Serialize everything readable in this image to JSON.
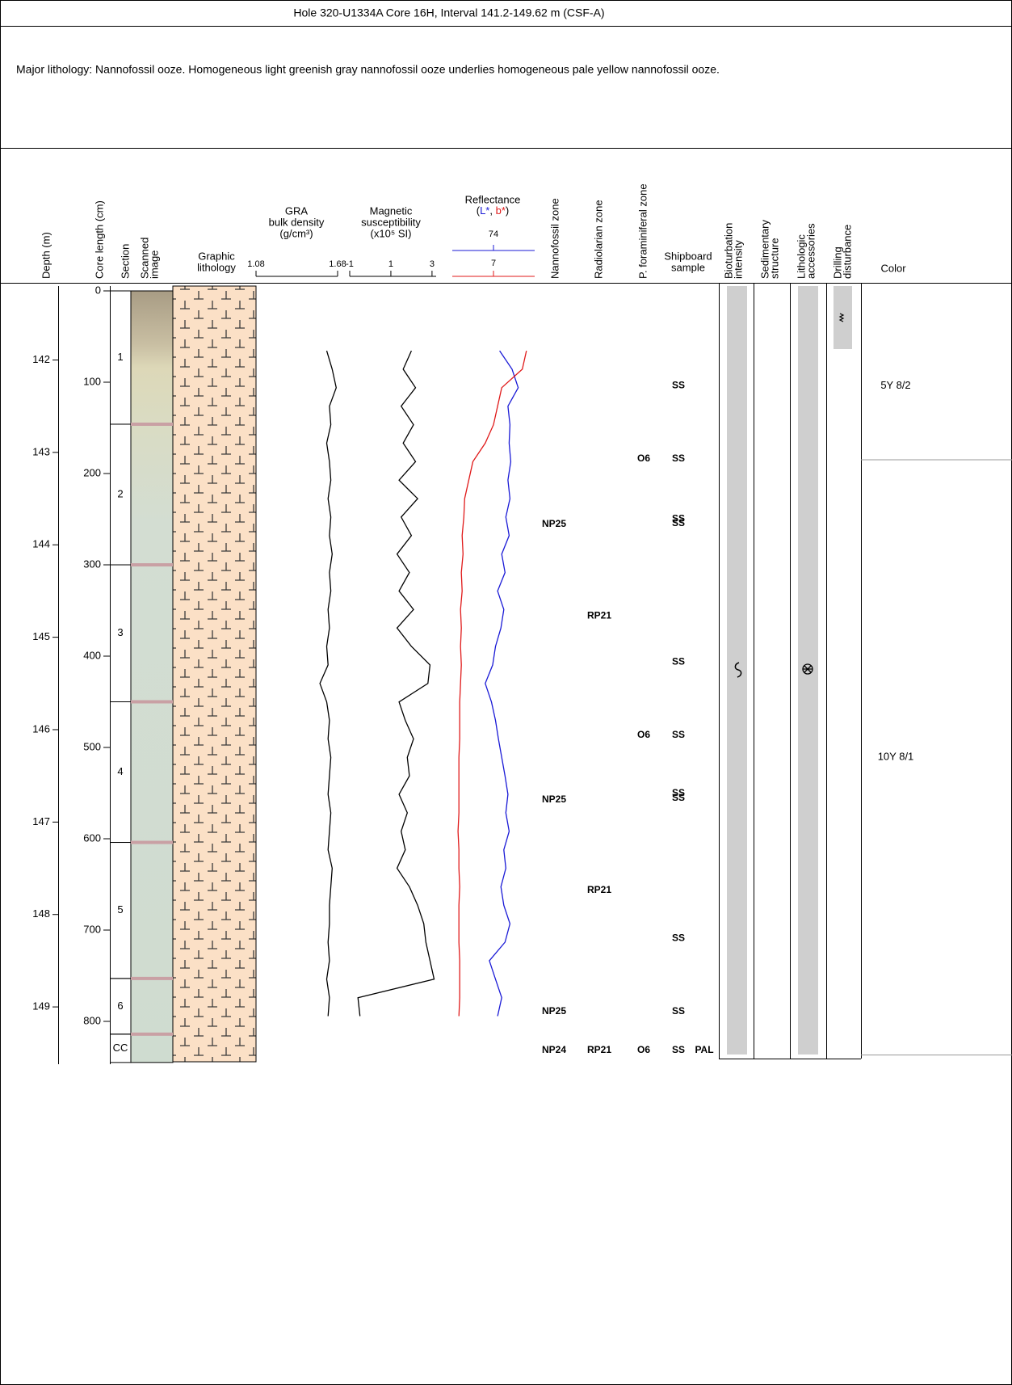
{
  "title": "Hole 320-U1334A Core 16H, Interval 141.2-149.62 m (CSF-A)",
  "lithology": "Major lithology: Nannofossil ooze. Homogeneous light greenish gray nannofossil ooze underlies homogeneous pale yellow nannofossil ooze.",
  "columns": {
    "depth": "Depth (m)",
    "core_length": "Core length (cm)",
    "section": "Section",
    "scanned": [
      "Scanned",
      "image"
    ],
    "graphic": [
      "Graphic",
      "lithology"
    ],
    "gra": [
      "GRA",
      "bulk density",
      "(g/cm³)"
    ],
    "magsus": [
      "Magnetic",
      "susceptibility",
      "(x10⁵ SI)"
    ],
    "reflectance": "Reflectance",
    "reflectance_sub": [
      "(",
      "L*",
      ", ",
      "b*",
      ")"
    ],
    "nannofossil": "Nannofossil zone",
    "radiolarian": "Radiolarian zone",
    "foram": "P. foraminiferal zone",
    "shipboard": [
      "Shipboard",
      "sample"
    ],
    "bioturbation": [
      "Bioturbation",
      "intensity"
    ],
    "sed_structure": [
      "Sedimentary",
      "structure"
    ],
    "accessories": [
      "Lithologic",
      "accessories"
    ],
    "disturbance": [
      "Drilling",
      "disturbance"
    ],
    "color": "Color"
  },
  "depth_lim": [
    141.2,
    149.62
  ],
  "depth_ticks": [
    142,
    143,
    144,
    145,
    146,
    147,
    148,
    149
  ],
  "core_lim": [
    0,
    850
  ],
  "core_ticks": [
    0,
    100,
    200,
    300,
    400,
    500,
    600,
    700,
    800
  ],
  "sections": [
    {
      "label": "1",
      "top": 0,
      "bottom": 146
    },
    {
      "label": "2",
      "top": 146,
      "bottom": 300
    },
    {
      "label": "3",
      "top": 300,
      "bottom": 450
    },
    {
      "label": "4",
      "top": 450,
      "bottom": 604
    },
    {
      "label": "5",
      "top": 604,
      "bottom": 753
    },
    {
      "label": "6",
      "top": 753,
      "bottom": 814
    },
    {
      "label": "CC",
      "top": 814,
      "bottom": 845
    }
  ],
  "depth": [
    141.9,
    142.1,
    142.3,
    142.5,
    142.7,
    142.9,
    143.1,
    143.3,
    143.5,
    143.7,
    143.9,
    144.1,
    144.3,
    144.5,
    144.7,
    144.9,
    145.1,
    145.3,
    145.5,
    145.7,
    145.9,
    146.1,
    146.3,
    146.5,
    146.7,
    146.9,
    147.1,
    147.3,
    147.5,
    147.7,
    147.9,
    148.1,
    148.3,
    148.5,
    148.7,
    148.9,
    149.1
  ],
  "gra": {
    "xlim": [
      1.08,
      1.68
    ],
    "xticks": [
      1.08,
      1.68
    ],
    "color": "#000000",
    "values": [
      1.6,
      1.64,
      1.67,
      1.62,
      1.63,
      1.6,
      1.62,
      1.63,
      1.61,
      1.63,
      1.62,
      1.64,
      1.62,
      1.63,
      1.61,
      1.62,
      1.6,
      1.61,
      1.55,
      1.6,
      1.62,
      1.61,
      1.63,
      1.62,
      1.61,
      1.63,
      1.62,
      1.61,
      1.64,
      1.63,
      1.62,
      1.62,
      1.61,
      1.62,
      1.6,
      1.62,
      1.61
    ]
  },
  "magsus": {
    "xlim": [
      -1,
      3.2
    ],
    "xticks": [
      -1,
      1,
      3
    ],
    "color": "#000000",
    "values": [
      2.0,
      1.6,
      2.2,
      1.5,
      2.1,
      1.6,
      2.2,
      1.4,
      2.3,
      1.5,
      2.0,
      1.3,
      1.9,
      1.4,
      2.1,
      1.3,
      2.0,
      2.9,
      2.8,
      1.4,
      1.7,
      2.1,
      1.8,
      1.9,
      1.4,
      1.8,
      1.5,
      1.7,
      1.3,
      1.9,
      2.3,
      2.6,
      2.7,
      2.9,
      3.1,
      -0.6,
      -0.5
    ]
  },
  "lstar": {
    "xlim": [
      64,
      84
    ],
    "xticks": [
      74
    ],
    "color": "#1a1ad6",
    "values": [
      75.5,
      78.5,
      80.0,
      77.5,
      78.0,
      77.8,
      78.2,
      77.5,
      78.0,
      77.0,
      77.8,
      76.0,
      76.8,
      75.0,
      76.5,
      75.8,
      74.5,
      73.8,
      72.0,
      73.5,
      74.5,
      75.2,
      76.0,
      76.8,
      77.5,
      77.0,
      77.8,
      76.5,
      77.0,
      75.8,
      76.5,
      78.0,
      76.8,
      73.0,
      74.5,
      76.0,
      75.0
    ]
  },
  "bstar": {
    "xlim": [
      2,
      12
    ],
    "xticks": [
      7
    ],
    "color": "#e01a1a",
    "values": [
      11.0,
      10.5,
      8.0,
      7.5,
      7.0,
      6.0,
      4.5,
      4.0,
      3.5,
      3.4,
      3.2,
      3.3,
      3.1,
      3.2,
      3.0,
      3.1,
      3.0,
      3.1,
      3.0,
      2.9,
      2.9,
      2.9,
      2.8,
      2.8,
      2.8,
      2.8,
      2.7,
      2.8,
      2.8,
      2.9,
      2.8,
      2.8,
      2.8,
      2.9,
      2.9,
      2.9,
      2.8
    ]
  },
  "zones": {
    "nannofossil": [
      {
        "label": "NP25",
        "depth": 143.78
      },
      {
        "label": "NP25",
        "depth": 146.76
      },
      {
        "label": "NP25",
        "depth": 149.05
      },
      {
        "label": "NP24",
        "depth": 149.47
      }
    ],
    "radiolarian": [
      {
        "label": "RP21",
        "depth": 144.77
      },
      {
        "label": "RP21",
        "depth": 147.74
      },
      {
        "label": "RP21",
        "depth": 149.47
      }
    ],
    "foram": [
      {
        "label": "O6",
        "depth": 143.07
      },
      {
        "label": "O6",
        "depth": 146.06
      },
      {
        "label": "O6",
        "depth": 149.47
      }
    ],
    "shipboard": [
      {
        "label": "SS",
        "depth": 142.28
      },
      {
        "label": "SS",
        "depth": 143.07
      },
      {
        "label": "SS",
        "depth": 143.72
      },
      {
        "label": "SS",
        "depth": 143.77
      },
      {
        "label": "SS",
        "depth": 145.27
      },
      {
        "label": "SS",
        "depth": 146.06
      },
      {
        "label": "SS",
        "depth": 146.69
      },
      {
        "label": "SS",
        "depth": 146.74
      },
      {
        "label": "SS",
        "depth": 148.26
      },
      {
        "label": "SS",
        "depth": 149.05
      },
      {
        "label": "SS",
        "depth": 149.47
      }
    ],
    "pal": [
      {
        "label": "PAL",
        "depth": 149.47
      }
    ]
  },
  "colors": [
    {
      "label": "5Y 8/2",
      "depth": 142.28
    },
    {
      "label": "10Y 8/1",
      "depth": 146.3
    }
  ],
  "color_boundaries": [
    143.08,
    149.52
  ]
}
